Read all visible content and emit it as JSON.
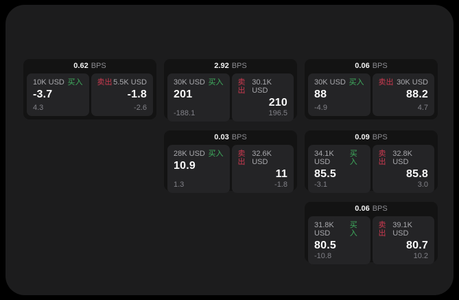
{
  "page": {
    "background": "#000000",
    "window_background": "#1c1c1d"
  },
  "colors": {
    "buy_green": "#3fae5e",
    "sell_red": "#cc3a50",
    "value_white": "#fafafa",
    "muted_grey": "#8d8d92",
    "card_background": "#131313",
    "panel_background": "#242426"
  },
  "labels": {
    "bps_unit": "BPS",
    "buy": "买入",
    "sell": "卖出"
  },
  "cards": [
    {
      "bps": "0.62",
      "buy": {
        "amount": "10K USD",
        "value": "-3.7",
        "sub": "4.3"
      },
      "sell": {
        "amount": "5.5K USD",
        "value": "-1.8",
        "sub": "-2.6"
      }
    },
    {
      "bps": "2.92",
      "buy": {
        "amount": "30K USD",
        "value": "201",
        "sub": "-188.1"
      },
      "sell": {
        "amount": "30.1K USD",
        "value": "210",
        "sub": "196.5"
      }
    },
    {
      "bps": "0.06",
      "buy": {
        "amount": "30K USD",
        "value": "88",
        "sub": "-4.9"
      },
      "sell": {
        "amount": "30K USD",
        "value": "88.2",
        "sub": "4.7"
      }
    },
    {
      "bps": "0.03",
      "buy": {
        "amount": "28K USD",
        "value": "10.9",
        "sub": "1.3"
      },
      "sell": {
        "amount": "32.6K USD",
        "value": "11",
        "sub": "-1.8"
      }
    },
    {
      "bps": "0.09",
      "buy": {
        "amount": "34.1K USD",
        "value": "85.5",
        "sub": "-3.1"
      },
      "sell": {
        "amount": "32.8K USD",
        "value": "85.8",
        "sub": "3.0"
      }
    },
    {
      "bps": "0.06",
      "buy": {
        "amount": "31.8K USD",
        "value": "80.5",
        "sub": "-10.8"
      },
      "sell": {
        "amount": "39.1K USD",
        "value": "80.7",
        "sub": "10.2"
      }
    }
  ]
}
